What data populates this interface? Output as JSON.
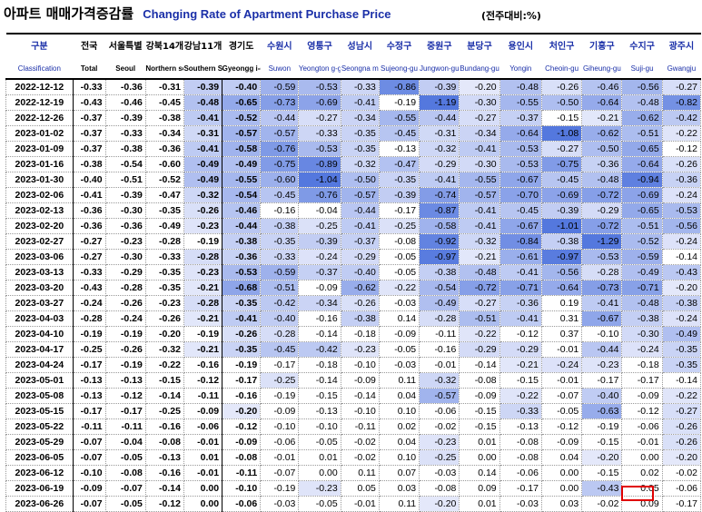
{
  "title": {
    "korean": "아파트 매매가격증감률",
    "english": "Changing Rate of Apartment Purchase Price",
    "unit": "(전주대비:%)"
  },
  "columns": [
    {
      "ko": "구분",
      "en": "Classification"
    },
    {
      "ko": "전국",
      "en": "Total"
    },
    {
      "ko": "서울특별",
      "en": "Seoul"
    },
    {
      "ko": "강북14개",
      "en": "Northern seoul"
    },
    {
      "ko": "강남11개",
      "en": "Southern Seoul"
    },
    {
      "ko": "경기도",
      "en": "Gyeongg i-do"
    },
    {
      "ko": "수원시",
      "en": "Suwon"
    },
    {
      "ko": "영통구",
      "en": "Yeongton g-gu"
    },
    {
      "ko": "성남시",
      "en": "Seongna m"
    },
    {
      "ko": "수정구",
      "en": "Sujeong-gu"
    },
    {
      "ko": "중원구",
      "en": "Jungwon-gu"
    },
    {
      "ko": "분당구",
      "en": "Bundang-gu"
    },
    {
      "ko": "용인시",
      "en": "Yongin"
    },
    {
      "ko": "처인구",
      "en": "Cheoin-gu"
    },
    {
      "ko": "기흥구",
      "en": "Giheung-gu"
    },
    {
      "ko": "수지구",
      "en": "Suji-gu"
    },
    {
      "ko": "광주시",
      "en": "Gwangju"
    }
  ],
  "rows": [
    {
      "date": "2022-12-12",
      "values": [
        "-0.33",
        "-0.36",
        "-0.31",
        "-0.39",
        "-0.40",
        "-0.59",
        "-0.53",
        "-0.33",
        "-0.86",
        "-0.39",
        "-0.20",
        "-0.48",
        "-0.26",
        "-0.46",
        "-0.56",
        "-0.27"
      ]
    },
    {
      "date": "2022-12-19",
      "values": [
        "-0.43",
        "-0.46",
        "-0.45",
        "-0.48",
        "-0.65",
        "-0.73",
        "-0.69",
        "-0.41",
        "-0.19",
        "-1.19",
        "-0.30",
        "-0.55",
        "-0.50",
        "-0.64",
        "-0.48",
        "-0.82"
      ]
    },
    {
      "date": "2022-12-26",
      "values": [
        "-0.37",
        "-0.39",
        "-0.38",
        "-0.41",
        "-0.52",
        "-0.44",
        "-0.27",
        "-0.34",
        "-0.55",
        "-0.44",
        "-0.27",
        "-0.37",
        "-0.15",
        "-0.21",
        "-0.62",
        "-0.42"
      ]
    },
    {
      "date": "2023-01-02",
      "values": [
        "-0.37",
        "-0.33",
        "-0.34",
        "-0.31",
        "-0.57",
        "-0.57",
        "-0.33",
        "-0.35",
        "-0.45",
        "-0.31",
        "-0.34",
        "-0.64",
        "-1.08",
        "-0.62",
        "-0.51",
        "-0.22"
      ]
    },
    {
      "date": "2023-01-09",
      "values": [
        "-0.37",
        "-0.38",
        "-0.36",
        "-0.41",
        "-0.58",
        "-0.76",
        "-0.53",
        "-0.35",
        "-0.13",
        "-0.32",
        "-0.41",
        "-0.53",
        "-0.27",
        "-0.50",
        "-0.65",
        "-0.12"
      ]
    },
    {
      "date": "2023-01-16",
      "values": [
        "-0.38",
        "-0.54",
        "-0.60",
        "-0.49",
        "-0.49",
        "-0.75",
        "-0.89",
        "-0.32",
        "-0.47",
        "-0.29",
        "-0.30",
        "-0.53",
        "-0.75",
        "-0.36",
        "-0.64",
        "-0.26"
      ]
    },
    {
      "date": "2023-01-30",
      "values": [
        "-0.40",
        "-0.51",
        "-0.52",
        "-0.49",
        "-0.55",
        "-0.60",
        "-1.04",
        "-0.50",
        "-0.35",
        "-0.41",
        "-0.55",
        "-0.67",
        "-0.45",
        "-0.48",
        "-0.94",
        "-0.36"
      ]
    },
    {
      "date": "2023-02-06",
      "values": [
        "-0.41",
        "-0.39",
        "-0.47",
        "-0.32",
        "-0.54",
        "-0.45",
        "-0.76",
        "-0.57",
        "-0.39",
        "-0.74",
        "-0.57",
        "-0.70",
        "-0.69",
        "-0.72",
        "-0.69",
        "-0.24"
      ]
    },
    {
      "date": "2023-02-13",
      "values": [
        "-0.36",
        "-0.30",
        "-0.35",
        "-0.26",
        "-0.46",
        "-0.16",
        "-0.04",
        "-0.44",
        "-0.17",
        "-0.87",
        "-0.41",
        "-0.45",
        "-0.39",
        "-0.29",
        "-0.65",
        "-0.53"
      ]
    },
    {
      "date": "2023-02-20",
      "values": [
        "-0.36",
        "-0.36",
        "-0.49",
        "-0.23",
        "-0.44",
        "-0.38",
        "-0.25",
        "-0.41",
        "-0.25",
        "-0.58",
        "-0.41",
        "-0.67",
        "-1.01",
        "-0.72",
        "-0.51",
        "-0.56"
      ]
    },
    {
      "date": "2023-02-27",
      "values": [
        "-0.27",
        "-0.23",
        "-0.28",
        "-0.19",
        "-0.38",
        "-0.35",
        "-0.39",
        "-0.37",
        "-0.08",
        "-0.92",
        "-0.32",
        "-0.84",
        "-0.38",
        "-1.29",
        "-0.52",
        "-0.24"
      ]
    },
    {
      "date": "2023-03-06",
      "values": [
        "-0.27",
        "-0.30",
        "-0.33",
        "-0.28",
        "-0.36",
        "-0.33",
        "-0.24",
        "-0.29",
        "-0.05",
        "-0.97",
        "-0.21",
        "-0.61",
        "-0.97",
        "-0.53",
        "-0.59",
        "-0.14"
      ]
    },
    {
      "date": "2023-03-13",
      "values": [
        "-0.33",
        "-0.29",
        "-0.35",
        "-0.23",
        "-0.53",
        "-0.59",
        "-0.37",
        "-0.40",
        "-0.05",
        "-0.38",
        "-0.48",
        "-0.41",
        "-0.56",
        "-0.28",
        "-0.49",
        "-0.43"
      ]
    },
    {
      "date": "2023-03-20",
      "values": [
        "-0.43",
        "-0.28",
        "-0.35",
        "-0.21",
        "-0.68",
        "-0.51",
        "-0.09",
        "-0.62",
        "-0.22",
        "-0.54",
        "-0.72",
        "-0.71",
        "-0.64",
        "-0.73",
        "-0.71",
        "-0.20"
      ]
    },
    {
      "date": "2023-03-27",
      "values": [
        "-0.24",
        "-0.26",
        "-0.23",
        "-0.28",
        "-0.35",
        "-0.42",
        "-0.34",
        "-0.26",
        "-0.03",
        "-0.49",
        "-0.27",
        "-0.36",
        "0.19",
        "-0.41",
        "-0.48",
        "-0.38"
      ]
    },
    {
      "date": "2023-04-03",
      "values": [
        "-0.28",
        "-0.24",
        "-0.26",
        "-0.21",
        "-0.41",
        "-0.40",
        "-0.16",
        "-0.38",
        "0.14",
        "-0.28",
        "-0.51",
        "-0.41",
        "0.31",
        "-0.67",
        "-0.38",
        "-0.24"
      ]
    },
    {
      "date": "2023-04-10",
      "values": [
        "-0.19",
        "-0.19",
        "-0.20",
        "-0.19",
        "-0.26",
        "-0.28",
        "-0.14",
        "-0.18",
        "-0.09",
        "-0.11",
        "-0.22",
        "-0.12",
        "0.37",
        "-0.10",
        "-0.30",
        "-0.49"
      ]
    },
    {
      "date": "2023-04-17",
      "values": [
        "-0.25",
        "-0.26",
        "-0.32",
        "-0.21",
        "-0.35",
        "-0.45",
        "-0.42",
        "-0.23",
        "-0.05",
        "-0.16",
        "-0.29",
        "-0.29",
        "-0.01",
        "-0.44",
        "-0.24",
        "-0.35"
      ]
    },
    {
      "date": "2023-04-24",
      "values": [
        "-0.17",
        "-0.19",
        "-0.22",
        "-0.16",
        "-0.19",
        "-0.17",
        "-0.18",
        "-0.10",
        "-0.03",
        "-0.01",
        "-0.14",
        "-0.21",
        "-0.24",
        "-0.23",
        "-0.18",
        "-0.35"
      ]
    },
    {
      "date": "2023-05-01",
      "values": [
        "-0.13",
        "-0.13",
        "-0.15",
        "-0.12",
        "-0.17",
        "-0.25",
        "-0.14",
        "-0.09",
        "0.11",
        "-0.32",
        "-0.08",
        "-0.15",
        "-0.01",
        "-0.17",
        "-0.17",
        "-0.14"
      ]
    },
    {
      "date": "2023-05-08",
      "values": [
        "-0.13",
        "-0.12",
        "-0.14",
        "-0.11",
        "-0.16",
        "-0.19",
        "-0.15",
        "-0.14",
        "0.04",
        "-0.57",
        "-0.09",
        "-0.22",
        "-0.07",
        "-0.40",
        "-0.09",
        "-0.22"
      ]
    },
    {
      "date": "2023-05-15",
      "values": [
        "-0.17",
        "-0.17",
        "-0.25",
        "-0.09",
        "-0.20",
        "-0.09",
        "-0.13",
        "-0.10",
        "0.10",
        "-0.06",
        "-0.15",
        "-0.33",
        "-0.05",
        "-0.63",
        "-0.12",
        "-0.27"
      ]
    },
    {
      "date": "2023-05-22",
      "values": [
        "-0.11",
        "-0.11",
        "-0.16",
        "-0.06",
        "-0.12",
        "-0.10",
        "-0.10",
        "-0.11",
        "0.02",
        "-0.02",
        "-0.15",
        "-0.13",
        "-0.12",
        "-0.19",
        "-0.06",
        "-0.26"
      ]
    },
    {
      "date": "2023-05-29",
      "values": [
        "-0.07",
        "-0.04",
        "-0.08",
        "-0.01",
        "-0.09",
        "-0.06",
        "-0.05",
        "-0.02",
        "0.04",
        "-0.23",
        "0.01",
        "-0.08",
        "-0.09",
        "-0.15",
        "-0.01",
        "-0.26"
      ]
    },
    {
      "date": "2023-06-05",
      "values": [
        "-0.07",
        "-0.05",
        "-0.13",
        "0.01",
        "-0.08",
        "-0.01",
        "0.01",
        "-0.02",
        "0.10",
        "-0.25",
        "0.00",
        "-0.08",
        "0.04",
        "-0.20",
        "0.00",
        "-0.20"
      ]
    },
    {
      "date": "2023-06-12",
      "values": [
        "-0.10",
        "-0.08",
        "-0.16",
        "-0.01",
        "-0.11",
        "-0.07",
        "0.00",
        "0.11",
        "0.07",
        "-0.03",
        "0.14",
        "-0.06",
        "0.00",
        "-0.15",
        "0.02",
        "-0.02"
      ]
    },
    {
      "date": "2023-06-19",
      "values": [
        "-0.09",
        "-0.07",
        "-0.14",
        "0.00",
        "-0.10",
        "-0.19",
        "-0.23",
        "0.05",
        "0.03",
        "-0.08",
        "0.09",
        "-0.17",
        "0.00",
        "-0.43",
        "0.05",
        "-0.06"
      ]
    },
    {
      "date": "2023-06-26",
      "values": [
        "-0.07",
        "-0.05",
        "-0.12",
        "0.00",
        "-0.06",
        "-0.03",
        "-0.05",
        "-0.01",
        "0.11",
        "-0.20",
        "0.01",
        "-0.03",
        "0.03",
        "-0.02",
        "0.09",
        "-0.17"
      ]
    }
  ],
  "colors": {
    "header_text": "#1a2fa8",
    "highlight_box": "#e00000"
  }
}
